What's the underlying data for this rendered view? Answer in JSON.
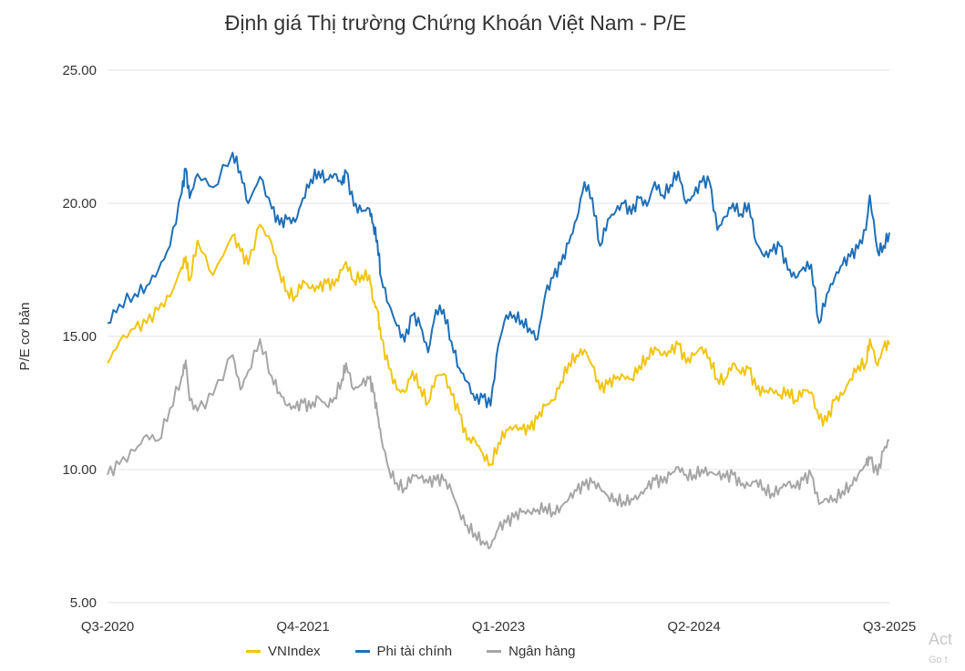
{
  "chart_data": {
    "type": "line",
    "title": "Định giá Thị trường Chứng Khoán Việt Nam - P/E",
    "ylabel": "P/E cơ bản",
    "xlabel": "",
    "ylim": [
      5,
      25
    ],
    "yticks": [
      "5.00",
      "10.00",
      "15.00",
      "20.00",
      "25.00"
    ],
    "y_grid": true,
    "xlim": [
      0,
      20
    ],
    "xticks": [
      {
        "pos": 0,
        "label": "Q3-2020"
      },
      {
        "pos": 5,
        "label": "Q4-2021"
      },
      {
        "pos": 10,
        "label": "Q1-2023"
      },
      {
        "pos": 15,
        "label": "Q2-2024"
      },
      {
        "pos": 20,
        "label": "Q3-2025"
      }
    ],
    "legend_position": "bottom",
    "series": [
      {
        "name": "VNIndex",
        "color": "#f1c40f",
        "points": [
          [
            0,
            14.0
          ],
          [
            0.3,
            14.8
          ],
          [
            0.7,
            15.3
          ],
          [
            1.0,
            15.5
          ],
          [
            1.3,
            16.0
          ],
          [
            1.6,
            16.5
          ],
          [
            1.9,
            17.6
          ],
          [
            2.0,
            18.0
          ],
          [
            2.1,
            17.1
          ],
          [
            2.3,
            18.6
          ],
          [
            2.7,
            17.3
          ],
          [
            3.2,
            18.8
          ],
          [
            3.4,
            18.2
          ],
          [
            3.6,
            17.7
          ],
          [
            3.9,
            19.2
          ],
          [
            4.2,
            18.5
          ],
          [
            4.4,
            17.4
          ],
          [
            4.6,
            16.7
          ],
          [
            4.8,
            16.5
          ],
          [
            5.0,
            17.1
          ],
          [
            5.2,
            16.8
          ],
          [
            5.4,
            16.8
          ],
          [
            5.6,
            17.0
          ],
          [
            5.8,
            16.9
          ],
          [
            6.0,
            17.5
          ],
          [
            6.1,
            17.8
          ],
          [
            6.3,
            17.1
          ],
          [
            6.5,
            17.3
          ],
          [
            6.7,
            17.3
          ],
          [
            6.8,
            16.3
          ],
          [
            6.9,
            16.0
          ],
          [
            7.0,
            14.9
          ],
          [
            7.2,
            13.8
          ],
          [
            7.4,
            13.0
          ],
          [
            7.6,
            12.9
          ],
          [
            7.8,
            13.7
          ],
          [
            8.0,
            13.1
          ],
          [
            8.2,
            12.5
          ],
          [
            8.4,
            13.5
          ],
          [
            8.6,
            13.6
          ],
          [
            8.8,
            12.8
          ],
          [
            9.0,
            12.1
          ],
          [
            9.2,
            11.1
          ],
          [
            9.4,
            11.1
          ],
          [
            9.6,
            10.6
          ],
          [
            9.8,
            10.2
          ],
          [
            10.0,
            11.0
          ],
          [
            10.2,
            11.5
          ],
          [
            10.4,
            11.6
          ],
          [
            10.6,
            11.5
          ],
          [
            10.8,
            11.5
          ],
          [
            11.0,
            11.9
          ],
          [
            11.2,
            12.4
          ],
          [
            11.4,
            12.6
          ],
          [
            11.6,
            13.3
          ],
          [
            11.8,
            14.0
          ],
          [
            12.0,
            14.3
          ],
          [
            12.2,
            14.5
          ],
          [
            12.4,
            13.9
          ],
          [
            12.6,
            13.0
          ],
          [
            12.8,
            13.2
          ],
          [
            13.0,
            13.4
          ],
          [
            13.2,
            13.5
          ],
          [
            13.4,
            13.4
          ],
          [
            13.6,
            13.9
          ],
          [
            13.8,
            14.2
          ],
          [
            14.0,
            14.6
          ],
          [
            14.2,
            14.3
          ],
          [
            14.4,
            14.4
          ],
          [
            14.6,
            14.7
          ],
          [
            14.8,
            14.0
          ],
          [
            15.0,
            14.3
          ],
          [
            15.2,
            14.6
          ],
          [
            15.4,
            14.2
          ],
          [
            15.6,
            13.4
          ],
          [
            15.8,
            13.4
          ],
          [
            16.0,
            14.0
          ],
          [
            16.2,
            13.6
          ],
          [
            16.4,
            13.8
          ],
          [
            16.6,
            13.0
          ],
          [
            16.8,
            12.9
          ],
          [
            17.0,
            13.0
          ],
          [
            17.2,
            12.8
          ],
          [
            17.4,
            13.0
          ],
          [
            17.6,
            12.6
          ],
          [
            17.8,
            13.0
          ],
          [
            18.0,
            12.9
          ],
          [
            18.2,
            11.9
          ],
          [
            18.4,
            11.8
          ],
          [
            18.6,
            12.6
          ],
          [
            18.8,
            12.8
          ],
          [
            19.0,
            13.4
          ],
          [
            19.2,
            13.9
          ],
          [
            19.4,
            14.0
          ],
          [
            19.5,
            14.9
          ],
          [
            19.7,
            13.9
          ],
          [
            19.85,
            14.6
          ],
          [
            20.0,
            14.7
          ]
        ]
      },
      {
        "name": "Phi tài chính",
        "color": "#1f6fb7",
        "points": [
          [
            0,
            15.5
          ],
          [
            0.3,
            16.2
          ],
          [
            0.7,
            16.6
          ],
          [
            1.0,
            16.9
          ],
          [
            1.3,
            17.5
          ],
          [
            1.6,
            18.4
          ],
          [
            1.9,
            20.4
          ],
          [
            2.0,
            21.3
          ],
          [
            2.1,
            20.2
          ],
          [
            2.3,
            21.1
          ],
          [
            2.7,
            20.6
          ],
          [
            3.2,
            21.9
          ],
          [
            3.4,
            21.2
          ],
          [
            3.6,
            20.0
          ],
          [
            3.9,
            21.0
          ],
          [
            4.2,
            19.8
          ],
          [
            4.4,
            19.2
          ],
          [
            4.6,
            19.4
          ],
          [
            4.8,
            19.3
          ],
          [
            5.0,
            20.2
          ],
          [
            5.2,
            20.9
          ],
          [
            5.4,
            21.2
          ],
          [
            5.6,
            20.9
          ],
          [
            5.8,
            21.1
          ],
          [
            6.0,
            20.7
          ],
          [
            6.1,
            21.2
          ],
          [
            6.3,
            19.9
          ],
          [
            6.5,
            19.7
          ],
          [
            6.7,
            19.8
          ],
          [
            6.8,
            19.2
          ],
          [
            6.9,
            18.6
          ],
          [
            7.0,
            17.2
          ],
          [
            7.2,
            16.2
          ],
          [
            7.4,
            15.4
          ],
          [
            7.6,
            14.8
          ],
          [
            7.8,
            15.8
          ],
          [
            8.0,
            15.4
          ],
          [
            8.2,
            14.4
          ],
          [
            8.4,
            16.0
          ],
          [
            8.6,
            16.0
          ],
          [
            8.8,
            14.8
          ],
          [
            9.0,
            13.8
          ],
          [
            9.2,
            13.3
          ],
          [
            9.4,
            12.6
          ],
          [
            9.6,
            12.7
          ],
          [
            9.8,
            12.4
          ],
          [
            10.0,
            14.7
          ],
          [
            10.2,
            15.8
          ],
          [
            10.4,
            15.8
          ],
          [
            10.6,
            15.6
          ],
          [
            10.8,
            15.3
          ],
          [
            11.0,
            14.9
          ],
          [
            11.2,
            16.6
          ],
          [
            11.4,
            17.2
          ],
          [
            11.6,
            17.7
          ],
          [
            11.8,
            18.5
          ],
          [
            12.0,
            19.4
          ],
          [
            12.2,
            20.8
          ],
          [
            12.4,
            20.2
          ],
          [
            12.6,
            18.4
          ],
          [
            12.8,
            19.4
          ],
          [
            13.0,
            19.7
          ],
          [
            13.2,
            20.0
          ],
          [
            13.4,
            19.6
          ],
          [
            13.6,
            20.2
          ],
          [
            13.8,
            19.9
          ],
          [
            14.0,
            20.8
          ],
          [
            14.2,
            20.3
          ],
          [
            14.4,
            20.7
          ],
          [
            14.6,
            21.2
          ],
          [
            14.8,
            20.0
          ],
          [
            15.0,
            20.3
          ],
          [
            15.2,
            20.8
          ],
          [
            15.4,
            20.8
          ],
          [
            15.6,
            19.0
          ],
          [
            15.8,
            19.5
          ],
          [
            16.0,
            20.0
          ],
          [
            16.2,
            19.6
          ],
          [
            16.4,
            20.0
          ],
          [
            16.6,
            18.5
          ],
          [
            16.8,
            18.0
          ],
          [
            17.0,
            18.2
          ],
          [
            17.2,
            18.4
          ],
          [
            17.4,
            17.5
          ],
          [
            17.6,
            17.2
          ],
          [
            17.8,
            17.6
          ],
          [
            18.0,
            17.7
          ],
          [
            18.2,
            15.5
          ],
          [
            18.4,
            16.6
          ],
          [
            18.6,
            17.2
          ],
          [
            18.8,
            17.7
          ],
          [
            19.0,
            18.0
          ],
          [
            19.2,
            18.3
          ],
          [
            19.4,
            19.0
          ],
          [
            19.5,
            20.3
          ],
          [
            19.7,
            18.2
          ],
          [
            19.85,
            18.4
          ],
          [
            20.0,
            18.9
          ]
        ]
      },
      {
        "name": "Ngân hàng",
        "color": "#a6a6a6",
        "points": [
          [
            0,
            9.8
          ],
          [
            0.3,
            10.2
          ],
          [
            0.7,
            10.7
          ],
          [
            1.0,
            11.3
          ],
          [
            1.3,
            11.1
          ],
          [
            1.6,
            12.3
          ],
          [
            1.9,
            13.5
          ],
          [
            2.0,
            14.1
          ],
          [
            2.1,
            12.6
          ],
          [
            2.3,
            12.2
          ],
          [
            2.7,
            12.8
          ],
          [
            3.2,
            14.3
          ],
          [
            3.4,
            13.0
          ],
          [
            3.6,
            13.7
          ],
          [
            3.9,
            14.9
          ],
          [
            4.2,
            13.5
          ],
          [
            4.4,
            12.9
          ],
          [
            4.6,
            12.4
          ],
          [
            4.8,
            12.3
          ],
          [
            5.0,
            12.5
          ],
          [
            5.2,
            12.3
          ],
          [
            5.4,
            12.7
          ],
          [
            5.6,
            12.4
          ],
          [
            5.8,
            12.7
          ],
          [
            6.0,
            13.4
          ],
          [
            6.1,
            14.0
          ],
          [
            6.3,
            13.0
          ],
          [
            6.5,
            13.2
          ],
          [
            6.7,
            13.4
          ],
          [
            6.8,
            12.9
          ],
          [
            6.9,
            12.1
          ],
          [
            7.0,
            11.2
          ],
          [
            7.2,
            10.0
          ],
          [
            7.4,
            9.5
          ],
          [
            7.6,
            9.3
          ],
          [
            7.8,
            9.8
          ],
          [
            8.0,
            9.7
          ],
          [
            8.2,
            9.5
          ],
          [
            8.4,
            9.6
          ],
          [
            8.6,
            9.6
          ],
          [
            8.8,
            9.2
          ],
          [
            9.0,
            8.4
          ],
          [
            9.2,
            7.9
          ],
          [
            9.4,
            7.6
          ],
          [
            9.6,
            7.3
          ],
          [
            9.8,
            7.1
          ],
          [
            10.0,
            7.8
          ],
          [
            10.2,
            8.0
          ],
          [
            10.4,
            8.2
          ],
          [
            10.6,
            8.4
          ],
          [
            10.8,
            8.4
          ],
          [
            11.0,
            8.5
          ],
          [
            11.2,
            8.6
          ],
          [
            11.4,
            8.4
          ],
          [
            11.6,
            8.6
          ],
          [
            11.8,
            8.9
          ],
          [
            12.0,
            9.2
          ],
          [
            12.2,
            9.4
          ],
          [
            12.4,
            9.5
          ],
          [
            12.6,
            9.3
          ],
          [
            12.8,
            9.0
          ],
          [
            13.0,
            8.9
          ],
          [
            13.2,
            8.8
          ],
          [
            13.4,
            8.9
          ],
          [
            13.6,
            9.0
          ],
          [
            13.8,
            9.3
          ],
          [
            14.0,
            9.6
          ],
          [
            14.2,
            9.5
          ],
          [
            14.4,
            9.8
          ],
          [
            14.6,
            10.1
          ],
          [
            14.8,
            9.8
          ],
          [
            15.0,
            9.8
          ],
          [
            15.2,
            10.0
          ],
          [
            15.4,
            9.9
          ],
          [
            15.6,
            9.8
          ],
          [
            15.8,
            9.7
          ],
          [
            16.0,
            9.8
          ],
          [
            16.2,
            9.4
          ],
          [
            16.4,
            9.4
          ],
          [
            16.6,
            9.6
          ],
          [
            16.8,
            9.3
          ],
          [
            17.0,
            9.1
          ],
          [
            17.2,
            9.3
          ],
          [
            17.4,
            9.5
          ],
          [
            17.6,
            9.3
          ],
          [
            17.8,
            9.6
          ],
          [
            18.0,
            9.8
          ],
          [
            18.2,
            8.7
          ],
          [
            18.4,
            8.9
          ],
          [
            18.6,
            8.9
          ],
          [
            18.8,
            9.2
          ],
          [
            19.0,
            9.4
          ],
          [
            19.2,
            9.8
          ],
          [
            19.4,
            10.2
          ],
          [
            19.5,
            10.4
          ],
          [
            19.7,
            9.8
          ],
          [
            19.85,
            10.7
          ],
          [
            20.0,
            11.1
          ]
        ]
      }
    ]
  },
  "legend": {
    "items": [
      {
        "label": "VNIndex",
        "color": "#f1c40f"
      },
      {
        "label": "Phi tài chính",
        "color": "#1f6fb7"
      },
      {
        "label": "Ngân hàng",
        "color": "#a6a6a6"
      }
    ]
  },
  "watermark": {
    "line1": "Act",
    "line2": "Go t"
  }
}
